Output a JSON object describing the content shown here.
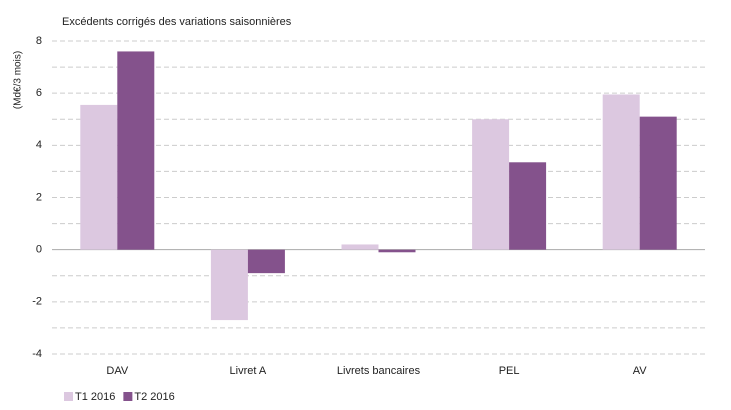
{
  "chart_data": {
    "type": "bar",
    "title": "Excédents corrigés des variations saisonnières",
    "y_label": "(Md€/3 mois)",
    "categories": [
      "DAV",
      "Livret A",
      "Livrets bancaires",
      "PEL",
      "AV"
    ],
    "series": [
      {
        "name": "T1 2016",
        "color": "#dcc8e0",
        "values": [
          5.55,
          -2.7,
          0.2,
          5.0,
          5.95
        ]
      },
      {
        "name": "T2 2016",
        "color": "#84528c",
        "values": [
          7.6,
          -0.9,
          -0.1,
          3.35,
          5.1
        ]
      }
    ],
    "ylim": [
      -4,
      8
    ],
    "yticks": [
      -4,
      -2,
      0,
      2,
      4,
      6,
      8
    ],
    "minor_yticks": [
      -3,
      -1,
      1,
      3,
      5,
      7
    ],
    "grid": true
  }
}
